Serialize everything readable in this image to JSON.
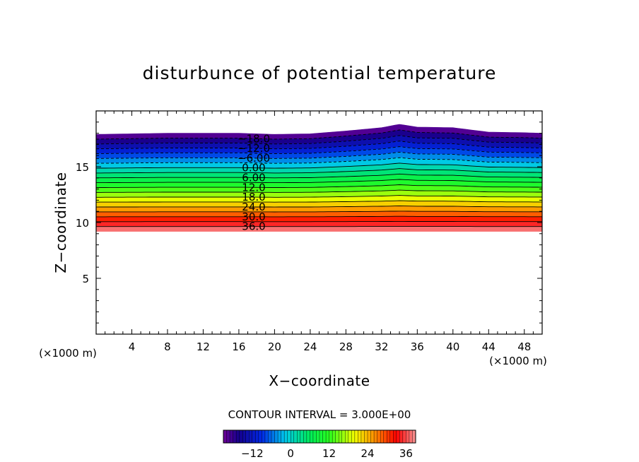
{
  "chart_data": {
    "type": "contour",
    "title": "disturbunce of potential temperature",
    "xlabel": "X−coordinate",
    "ylabel": "Z−coordinate",
    "x_unit": "(×1000 m)",
    "y_unit": "(×1000 m)",
    "xlim": [
      0,
      50
    ],
    "ylim": [
      0,
      20
    ],
    "x_ticks": [
      4,
      8,
      12,
      16,
      20,
      24,
      28,
      32,
      36,
      40,
      44,
      48
    ],
    "y_ticks": [
      5,
      10,
      15
    ],
    "contour_interval_text": "CONTOUR INTERVAL = 3.000E+00",
    "contour_interval": 3.0,
    "level_range": [
      -21,
      39
    ],
    "contour_labels": [
      "−18.0",
      "−12.0",
      "−6.00",
      "0.00",
      "6.00",
      "12.0",
      "18.0",
      "24.0",
      "30.0",
      "36.0"
    ],
    "colorbar_ticks": [
      "−12",
      "0",
      "12",
      "24",
      "36"
    ],
    "colorbar_tick_values": [
      -12,
      0,
      12,
      24,
      36
    ],
    "field_top_profile": {
      "x": [
        0,
        8,
        16,
        20,
        24,
        28,
        32,
        34,
        36,
        40,
        44,
        48,
        50
      ],
      "z": [
        17.9,
        18.0,
        18.0,
        17.9,
        17.95,
        18.2,
        18.5,
        18.8,
        18.55,
        18.5,
        18.1,
        18.05,
        18.0
      ]
    },
    "field_bottom_z": 9.2
  }
}
